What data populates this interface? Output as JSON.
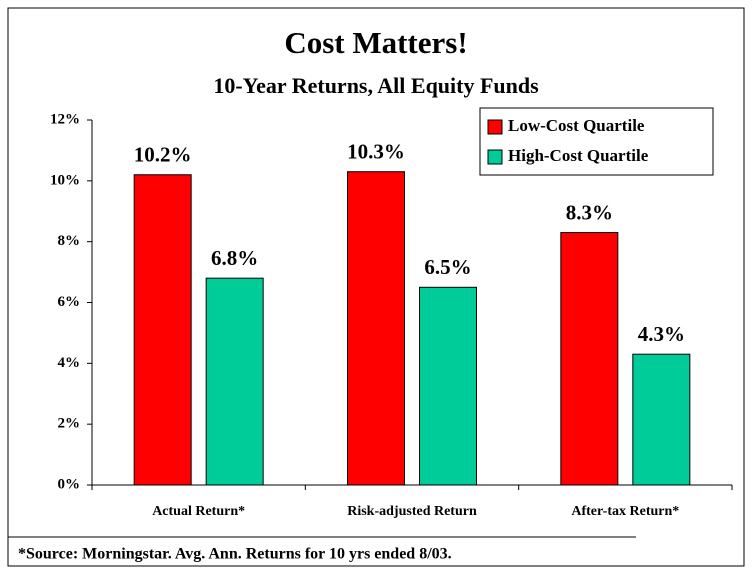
{
  "chart_data": {
    "type": "bar",
    "title": "Cost Matters!",
    "subtitle": "10-Year Returns, All Equity Funds",
    "categories": [
      "Actual Return*",
      "Risk-adjusted Return",
      "After-tax Return*"
    ],
    "series": [
      {
        "name": "Low-Cost Quartile",
        "color": "#ff0000",
        "values": [
          10.2,
          10.3,
          8.3
        ],
        "value_labels": [
          "10.2%",
          "10.3%",
          "8.3%"
        ]
      },
      {
        "name": "High-Cost Quartile",
        "color": "#00cc99",
        "values": [
          6.8,
          6.5,
          4.3
        ],
        "value_labels": [
          "6.8%",
          "6.5%",
          "4.3%"
        ]
      }
    ],
    "ylim": [
      0,
      12
    ],
    "yticks": [
      {
        "value": 0,
        "label": "0%"
      },
      {
        "value": 2,
        "label": "2%"
      },
      {
        "value": 4,
        "label": "4%"
      },
      {
        "value": 6,
        "label": "6%"
      },
      {
        "value": 8,
        "label": "8%"
      },
      {
        "value": 10,
        "label": "10%"
      },
      {
        "value": 12,
        "label": "12%"
      }
    ],
    "legend": "top-right",
    "footnote": "*Source: Morningstar. Avg. Ann. Returns for 10 yrs ended 8/03."
  }
}
